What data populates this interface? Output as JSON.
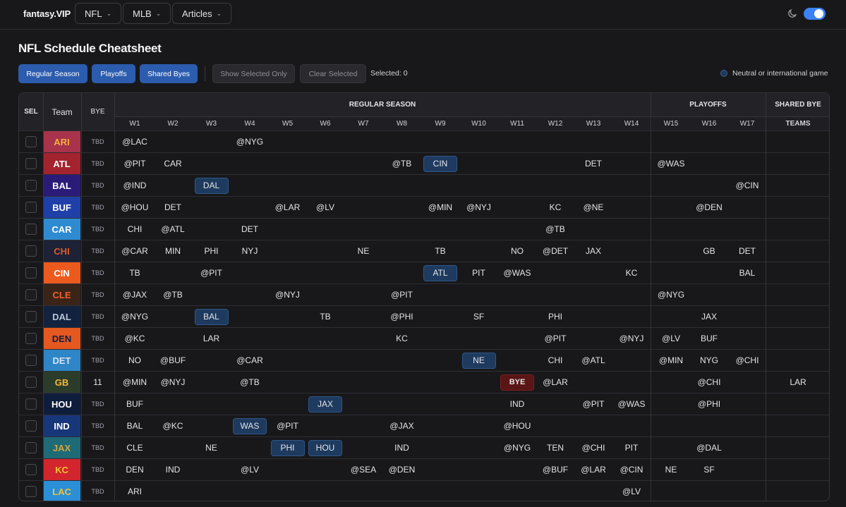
{
  "nav": {
    "brand": "fantasy.VIP",
    "menus": [
      {
        "label": "NFL"
      },
      {
        "label": "MLB"
      },
      {
        "label": "Articles"
      }
    ]
  },
  "page": {
    "title": "NFL Schedule Cheatsheet",
    "buttons": {
      "regular_season": "Regular Season",
      "playoffs": "Playoffs",
      "shared_byes": "Shared Byes",
      "show_selected": "Show Selected Only",
      "clear_selected": "Clear Selected"
    },
    "selected_count": "Selected: 0",
    "legend": "Neutral or international game"
  },
  "table": {
    "headers": {
      "sel": "SEL",
      "team": "Team",
      "bye": "BYE",
      "regular_season": "REGULAR SEASON",
      "playoffs": "PLAYOFFS",
      "shared_bye": "SHARED BYE",
      "teams": "TEAMS"
    },
    "weeks": [
      "W1",
      "W2",
      "W3",
      "W4",
      "W5",
      "W6",
      "W7",
      "W8",
      "W9",
      "W10",
      "W11",
      "W12",
      "W13",
      "W14",
      "W15",
      "W16",
      "W17"
    ],
    "rows": [
      {
        "team": "ARI",
        "color": "#a8334a",
        "text": "#f5b13d",
        "bye": "TBD",
        "games": [
          "@LAC",
          "",
          "",
          "@NYG",
          "",
          "",
          "",
          "",
          "",
          "",
          "",
          "",
          "",
          "",
          "",
          "",
          ""
        ],
        "intl": [],
        "shared": ""
      },
      {
        "team": "ATL",
        "color": "#a3232f",
        "text": "#ffffff",
        "bye": "TBD",
        "games": [
          "@PIT",
          "CAR",
          "",
          "",
          "",
          "",
          "",
          "@TB",
          "CIN",
          "",
          "",
          "",
          "DET",
          "",
          "@WAS",
          "",
          ""
        ],
        "intl": [
          8
        ],
        "shared": ""
      },
      {
        "team": "BAL",
        "color": "#2b1b78",
        "text": "#ffffff",
        "bye": "TBD",
        "games": [
          "@IND",
          "",
          "DAL",
          "",
          "",
          "",
          "",
          "",
          "",
          "",
          "",
          "",
          "",
          "",
          "",
          "",
          "@CIN"
        ],
        "intl": [
          2
        ],
        "shared": ""
      },
      {
        "team": "BUF",
        "color": "#1f40a8",
        "text": "#ffffff",
        "bye": "TBD",
        "games": [
          "@HOU",
          "DET",
          "",
          "",
          "@LAR",
          "@LV",
          "",
          "",
          "@MIN",
          "@NYJ",
          "",
          "KC",
          "@NE",
          "",
          "",
          "@DEN",
          ""
        ],
        "intl": [],
        "shared": ""
      },
      {
        "team": "CAR",
        "color": "#2e8bd1",
        "text": "#ffffff",
        "bye": "TBD",
        "games": [
          "CHI",
          "@ATL",
          "",
          "DET",
          "",
          "",
          "",
          "",
          "",
          "",
          "",
          "@TB",
          "",
          "",
          "",
          "",
          ""
        ],
        "intl": [],
        "shared": ""
      },
      {
        "team": "CHI",
        "color": "#1d2236",
        "text": "#e35a2a",
        "bye": "TBD",
        "games": [
          "@CAR",
          "MIN",
          "PHI",
          "NYJ",
          "",
          "",
          "NE",
          "",
          "TB",
          "",
          "NO",
          "@DET",
          "JAX",
          "",
          "",
          "GB",
          "DET"
        ],
        "intl": [],
        "shared": ""
      },
      {
        "team": "CIN",
        "color": "#ed5a1e",
        "text": "#ffffff",
        "bye": "TBD",
        "games": [
          "TB",
          "",
          "@PIT",
          "",
          "",
          "",
          "",
          "",
          "ATL",
          "PIT",
          "@WAS",
          "",
          "",
          "KC",
          "",
          "",
          "BAL"
        ],
        "intl": [
          8
        ],
        "shared": ""
      },
      {
        "team": "CLE",
        "color": "#3a2418",
        "text": "#f1612a",
        "bye": "TBD",
        "games": [
          "@JAX",
          "@TB",
          "",
          "",
          "@NYJ",
          "",
          "",
          "@PIT",
          "",
          "",
          "",
          "",
          "",
          "",
          "@NYG",
          "",
          ""
        ],
        "intl": [],
        "shared": ""
      },
      {
        "team": "DAL",
        "color": "#13233f",
        "text": "#b9c4d6",
        "bye": "TBD",
        "games": [
          "@NYG",
          "",
          "BAL",
          "",
          "",
          "TB",
          "",
          "@PHI",
          "",
          "SF",
          "",
          "PHI",
          "",
          "",
          "",
          "JAX",
          ""
        ],
        "intl": [
          2
        ],
        "shared": ""
      },
      {
        "team": "DEN",
        "color": "#e5581f",
        "text": "#0e1f45",
        "bye": "TBD",
        "games": [
          "@KC",
          "",
          "LAR",
          "",
          "",
          "",
          "",
          "KC",
          "",
          "",
          "",
          "@PIT",
          "",
          "@NYJ",
          "@LV",
          "BUF",
          ""
        ],
        "intl": [],
        "shared": ""
      },
      {
        "team": "DET",
        "color": "#2f86c7",
        "text": "#d6e3ef",
        "bye": "TBD",
        "games": [
          "NO",
          "@BUF",
          "",
          "@CAR",
          "",
          "",
          "",
          "",
          "",
          "NE",
          "",
          "CHI",
          "@ATL",
          "",
          "@MIN",
          "NYG",
          "@CHI"
        ],
        "intl": [
          9
        ],
        "shared": ""
      },
      {
        "team": "GB",
        "color": "#2b3d2a",
        "text": "#f5b93a",
        "bye": "11",
        "games": [
          "@MIN",
          "@NYJ",
          "",
          "@TB",
          "",
          "",
          "",
          "",
          "",
          "",
          "BYE",
          "@LAR",
          "",
          "",
          "",
          "@CHI",
          ""
        ],
        "intl": [],
        "bye_week": 10,
        "shared": "LAR"
      },
      {
        "team": "HOU",
        "color": "#0f1d3d",
        "text": "#ffffff",
        "bye": "TBD",
        "games": [
          "BUF",
          "",
          "",
          "",
          "",
          "JAX",
          "",
          "",
          "",
          "",
          "IND",
          "",
          "@PIT",
          "@WAS",
          "",
          "@PHI",
          ""
        ],
        "intl": [
          5
        ],
        "shared": ""
      },
      {
        "team": "IND",
        "color": "#18367a",
        "text": "#ffffff",
        "bye": "TBD",
        "games": [
          "BAL",
          "@KC",
          "",
          "WAS",
          "@PIT",
          "",
          "",
          "@JAX",
          "",
          "",
          "@HOU",
          "",
          "",
          "",
          "",
          "",
          ""
        ],
        "intl": [
          3
        ],
        "shared": ""
      },
      {
        "team": "JAX",
        "color": "#1f6a77",
        "text": "#d4a63c",
        "bye": "TBD",
        "games": [
          "CLE",
          "",
          "NE",
          "",
          "PHI",
          "HOU",
          "",
          "IND",
          "",
          "",
          "@NYG",
          "TEN",
          "@CHI",
          "PIT",
          "",
          "@DAL",
          ""
        ],
        "intl": [
          4,
          5
        ],
        "shared": ""
      },
      {
        "team": "KC",
        "color": "#d3252e",
        "text": "#f5c233",
        "bye": "TBD",
        "games": [
          "DEN",
          "IND",
          "",
          "@LV",
          "",
          "",
          "@SEA",
          "@DEN",
          "",
          "",
          "",
          "@BUF",
          "@LAR",
          "@CIN",
          "NE",
          "SF",
          ""
        ],
        "intl": [],
        "shared": ""
      },
      {
        "team": "LAC",
        "color": "#2a8fd6",
        "text": "#f5c233",
        "bye": "TBD",
        "games": [
          "ARI",
          "",
          "",
          "",
          "",
          "",
          "",
          "",
          "",
          "",
          "",
          "",
          "",
          "@LV",
          "",
          "",
          ""
        ],
        "intl": [],
        "shared": ""
      }
    ]
  }
}
